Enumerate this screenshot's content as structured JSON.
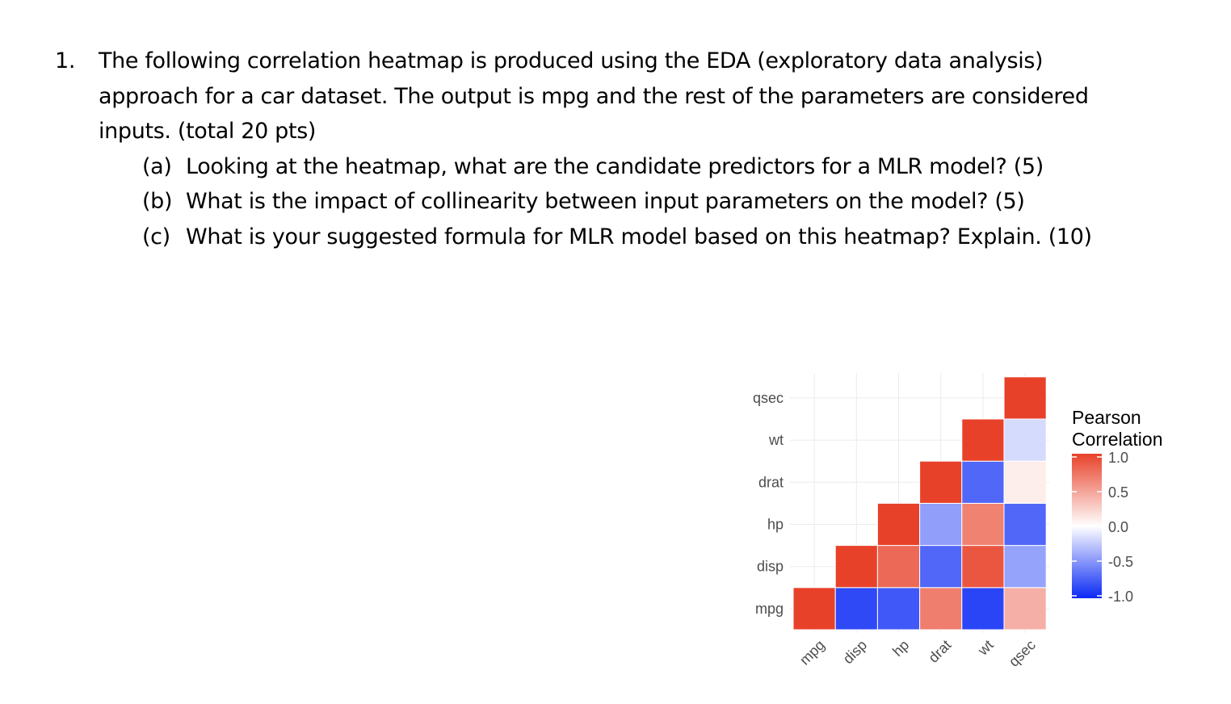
{
  "question": {
    "number": "1.",
    "intro_lines": [
      "The following correlation heatmap is produced using the EDA (exploratory data analysis)",
      "approach for a car dataset. The output is mpg and the rest of the parameters are considered",
      "inputs. (total 20 pts)"
    ],
    "parts": [
      {
        "tag": "(a)",
        "text": "Looking at the heatmap, what are the candidate predictors for a MLR model? (5)"
      },
      {
        "tag": "(b)",
        "text": "What is the impact of collinearity between input parameters on the model? (5)"
      },
      {
        "tag": "(c)",
        "text": "What is your suggested formula for MLR model based on this heatmap? Explain. (10)"
      }
    ]
  },
  "chart_data": {
    "type": "heatmap",
    "variables": [
      "mpg",
      "disp",
      "hp",
      "drat",
      "wt",
      "qsec"
    ],
    "matrix_shape": "lower-triangular",
    "correlations": [
      [
        1.0,
        -0.85,
        -0.78,
        0.68,
        -0.87,
        0.42
      ],
      [
        -0.85,
        1.0,
        0.79,
        -0.71,
        0.89,
        -0.43
      ],
      [
        -0.78,
        0.79,
        1.0,
        -0.45,
        0.66,
        -0.71
      ],
      [
        0.68,
        -0.71,
        -0.45,
        1.0,
        -0.71,
        0.09
      ],
      [
        -0.87,
        0.89,
        0.66,
        -0.71,
        1.0,
        -0.17
      ],
      [
        0.42,
        -0.43,
        -0.71,
        0.09,
        -0.17,
        1.0
      ]
    ],
    "legend": {
      "title_lines": [
        "Pearson",
        "Correlation"
      ],
      "ticks": [
        1.0,
        0.5,
        0.0,
        -0.5,
        -1.0
      ],
      "tick_labels": [
        "1.0",
        "0.5",
        "0.0",
        "-0.5",
        "-1.0"
      ],
      "range": [
        -1,
        1
      ]
    },
    "colors": {
      "low": "#0a29f5",
      "mid": "#ffffff",
      "high": "#e8412a",
      "grid": "#ebebeb",
      "axis_text": "#4d4d4d"
    }
  }
}
